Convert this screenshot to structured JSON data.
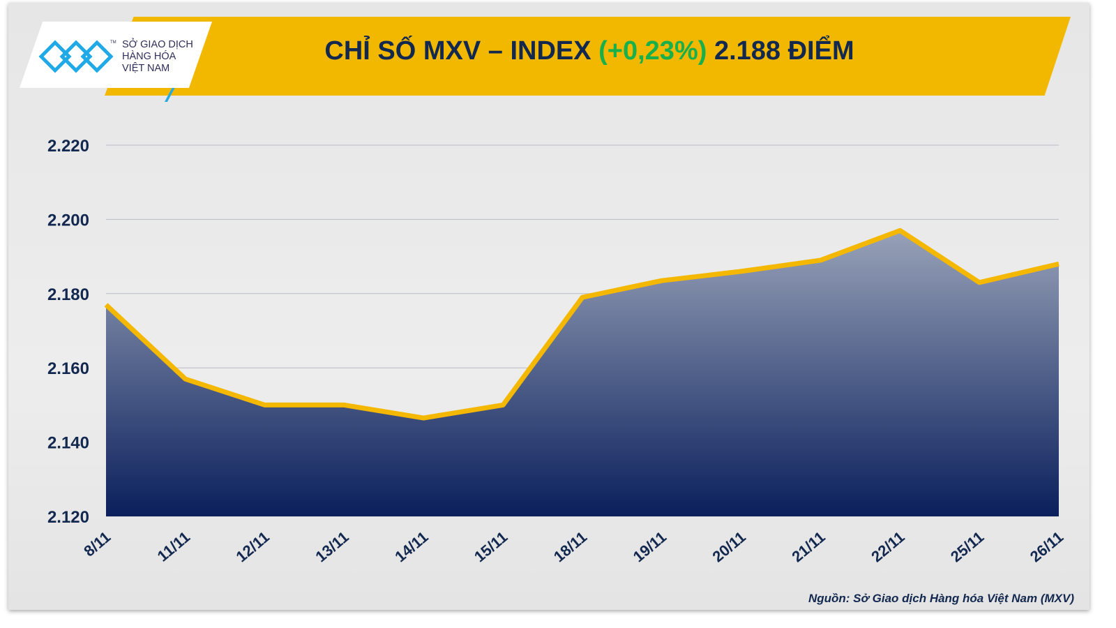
{
  "header": {
    "title_prefix": "CHỈ SỐ MXV – INDEX ",
    "change": "(+0,23%)",
    "title_suffix": " 2.188 ĐIỂM",
    "logo_lines": [
      "SỞ GIAO DỊCH",
      "HÀNG HÓA",
      "VIỆT NAM"
    ],
    "logo_tm": "TM"
  },
  "source": "Nguồn: Sở Giao dịch Hàng hóa Việt Nam (MXV)",
  "colors": {
    "banner": "#f2b800",
    "line": "#f5b800",
    "area_top": "#98a2b8",
    "area_bottom": "#0a1f5c",
    "text": "#13284f",
    "change": "#19b04b"
  },
  "chart_data": {
    "type": "area",
    "title": "CHỈ SỐ MXV – INDEX (+0,23%) 2.188 ĐIỂM",
    "categories": [
      "8/11",
      "11/11",
      "12/11",
      "13/11",
      "14/11",
      "15/11",
      "18/11",
      "19/11",
      "20/11",
      "21/11",
      "22/11",
      "25/11",
      "26/11"
    ],
    "values": [
      2177,
      2157,
      2150,
      2150,
      2146.5,
      2150,
      2179,
      2183.5,
      2186,
      2189,
      2197,
      2183,
      2188
    ],
    "ylim": [
      2120,
      2220
    ],
    "yticks": [
      2120,
      2140,
      2160,
      2180,
      2200,
      2220
    ],
    "ytick_labels": [
      "2.120",
      "2.140",
      "2.160",
      "2.180",
      "2.200",
      "2.220"
    ],
    "grid": true,
    "xlabel": "",
    "ylabel": ""
  }
}
